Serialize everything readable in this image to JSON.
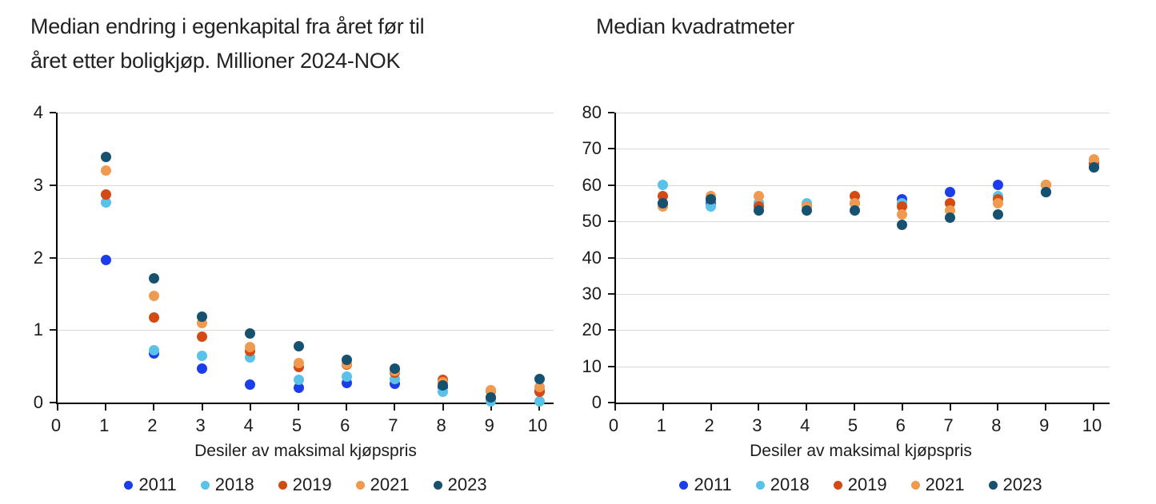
{
  "chart_data": [
    {
      "type": "scatter",
      "title": "Median endring i egenkapital fra året før til\nåret etter boligkjøp. Millioner 2024-NOK",
      "xlabel": "Desiler av maksimal kjøpspris",
      "xlim": [
        0,
        10
      ],
      "ylim": [
        0,
        4
      ],
      "xticks": [
        0,
        1,
        2,
        3,
        4,
        5,
        6,
        7,
        8,
        9,
        10
      ],
      "yticks": [
        0,
        1,
        2,
        3,
        4
      ],
      "grid": "horizontal",
      "legend_position": "bottom",
      "x": [
        1,
        2,
        3,
        4,
        5,
        6,
        7,
        8,
        9,
        10
      ],
      "series": [
        {
          "name": "2011",
          "color": "#1b3eea",
          "values": [
            1.97,
            0.68,
            0.47,
            0.25,
            0.2,
            0.27,
            0.26,
            0.22,
            0.06,
            0.16
          ]
        },
        {
          "name": "2018",
          "color": "#5ac2e8",
          "values": [
            2.76,
            0.72,
            0.65,
            0.62,
            0.31,
            0.36,
            0.32,
            0.15,
            0.02,
            0.02
          ]
        },
        {
          "name": "2019",
          "color": "#d44a15",
          "values": [
            2.87,
            1.17,
            0.91,
            0.71,
            0.49,
            0.52,
            0.41,
            0.31,
            0.16,
            0.15
          ]
        },
        {
          "name": "2021",
          "color": "#f09a4f",
          "values": [
            3.2,
            1.47,
            1.1,
            0.77,
            0.55,
            0.53,
            0.43,
            0.28,
            0.17,
            0.21
          ]
        },
        {
          "name": "2023",
          "color": "#175170",
          "values": [
            3.39,
            1.71,
            1.19,
            0.95,
            0.78,
            0.59,
            0.47,
            0.24,
            0.07,
            0.32
          ]
        }
      ]
    },
    {
      "type": "scatter",
      "title": "Median kvadratmeter",
      "xlabel": "Desiler av maksimal kjøpspris",
      "xlim": [
        0,
        10
      ],
      "ylim": [
        0,
        80
      ],
      "xticks": [
        0,
        1,
        2,
        3,
        4,
        5,
        6,
        7,
        8,
        9,
        10
      ],
      "yticks": [
        0,
        10,
        20,
        30,
        40,
        50,
        60,
        70,
        80
      ],
      "grid": "horizontal",
      "legend_position": "bottom",
      "x": [
        1,
        2,
        3,
        4,
        5,
        6,
        7,
        8,
        9,
        10
      ],
      "series": [
        {
          "name": "2011",
          "color": "#1b3eea",
          "values": [
            55,
            55,
            55,
            54,
            55,
            56,
            58,
            60,
            58,
            65
          ]
        },
        {
          "name": "2018",
          "color": "#5ac2e8",
          "values": [
            60,
            54,
            55,
            55,
            55,
            55,
            55,
            57,
            60,
            66
          ]
        },
        {
          "name": "2019",
          "color": "#d44a15",
          "values": [
            57,
            56,
            54,
            54,
            57,
            54,
            55,
            56,
            60,
            66
          ]
        },
        {
          "name": "2021",
          "color": "#f09a4f",
          "values": [
            54,
            57,
            57,
            54,
            55,
            52,
            53,
            55,
            60,
            67
          ]
        },
        {
          "name": "2023",
          "color": "#175170",
          "values": [
            55,
            56,
            53,
            53,
            53,
            49,
            51,
            52,
            58,
            65
          ]
        }
      ]
    }
  ]
}
